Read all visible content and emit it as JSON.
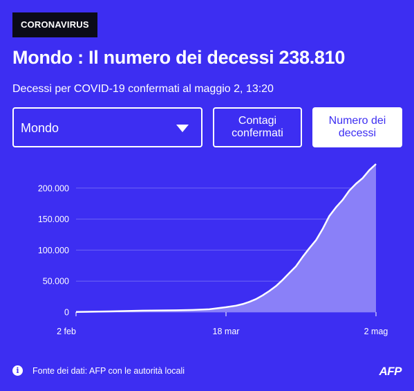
{
  "header": {
    "tag": "CORONAVIRUS",
    "title": "Mondo : Il numero dei decessi 238.810",
    "subtitle": "Decessi per COVID-19 confermati al maggio 2, 13:20"
  },
  "controls": {
    "region_select": "Mondo",
    "btn_cases": "Contagi\nconfermati",
    "btn_deaths": "Numero dei\ndecessi"
  },
  "footer": {
    "info_icon": "i",
    "source": "Fonte dei dati: AFP con le autorità locali",
    "logo": "AFP"
  },
  "colors": {
    "background": "#3d2ef2",
    "area_fill": "#8a80f8",
    "line": "#ffffff",
    "grid": "#6f65f5"
  },
  "chart_data": {
    "type": "area",
    "x_start": "2 feb",
    "x_end": "2 mag",
    "x_ticks": [
      {
        "label": "2 feb",
        "day": 0
      },
      {
        "label": "18 mar",
        "day": 45
      },
      {
        "label": "2 mag",
        "day": 90
      }
    ],
    "y_ticks": [
      {
        "label": "0",
        "value": 0
      },
      {
        "label": "50.000",
        "value": 50000
      },
      {
        "label": "100.000",
        "value": 100000
      },
      {
        "label": "150.000",
        "value": 150000
      },
      {
        "label": "200.000",
        "value": 200000
      }
    ],
    "ylim": [
      0,
      238810
    ],
    "series": [
      {
        "days": [
          0,
          10,
          20,
          30,
          35,
          40,
          45,
          48,
          50,
          52,
          54,
          56,
          58,
          60,
          62,
          64,
          66,
          68,
          70,
          72,
          74,
          76,
          78,
          80,
          82,
          84,
          86,
          88,
          90
        ],
        "values": [
          304,
          1100,
          2300,
          2900,
          3500,
          4600,
          7900,
          10400,
          13000,
          16500,
          21000,
          27000,
          34000,
          42000,
          52000,
          63000,
          74000,
          89000,
          103000,
          116000,
          134000,
          155000,
          169000,
          181000,
          196000,
          207000,
          216000,
          229000,
          238810
        ]
      }
    ]
  }
}
